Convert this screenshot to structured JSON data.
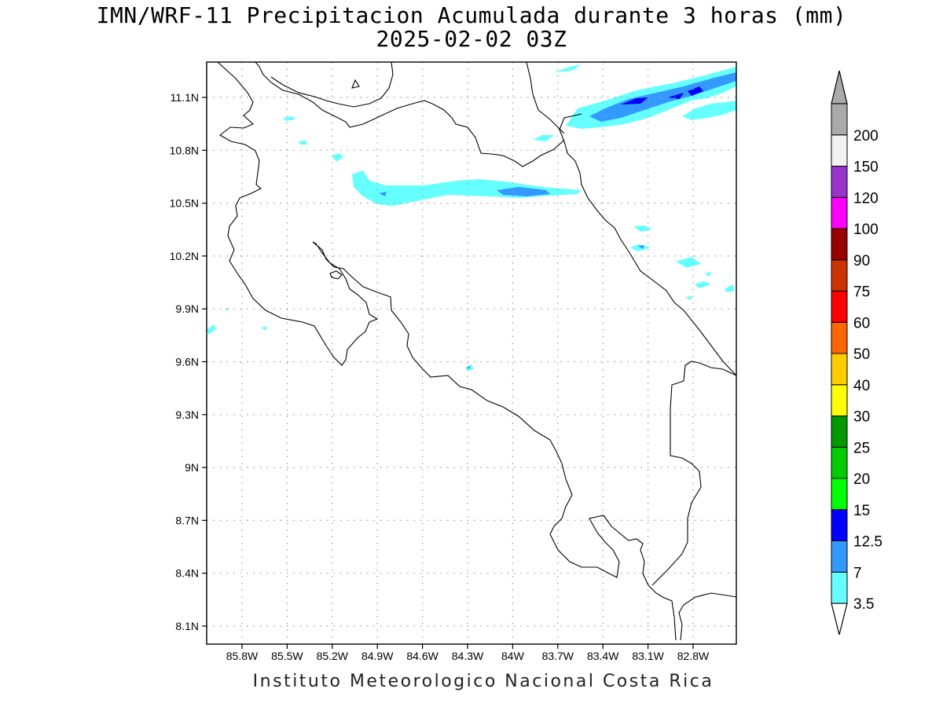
{
  "title": {
    "line1": "IMN/WRF-11 Precipitacion Acumulada durante 3 horas (mm)",
    "line2": "2025-02-02 03Z"
  },
  "footer": "Instituto Meteorologico Nacional Costa Rica",
  "lat_labels": [
    "11.1N",
    "10.8N",
    "10.5N",
    "10.2N",
    "9.9N",
    "9.6N",
    "9.3N",
    "9N",
    "8.7N",
    "8.4N",
    "8.1N"
  ],
  "lat_values": [
    11.1,
    10.8,
    10.5,
    10.2,
    9.9,
    9.6,
    9.3,
    9.0,
    8.7,
    8.4,
    8.1
  ],
  "lon_labels": [
    "85.8W",
    "85.5W",
    "85.2W",
    "84.9W",
    "84.6W",
    "84.3W",
    "84W",
    "83.7W",
    "83.4W",
    "83.1W",
    "82.8W"
  ],
  "lon_values": [
    -85.8,
    -85.5,
    -85.2,
    -84.9,
    -84.6,
    -84.3,
    -84.0,
    -83.7,
    -83.4,
    -83.1,
    -82.8
  ],
  "colorbar": {
    "levels": [
      "3.5",
      "7",
      "12.5",
      "15",
      "20",
      "25",
      "30",
      "40",
      "50",
      "60",
      "75",
      "90",
      "100",
      "120",
      "150",
      "200"
    ],
    "colors": [
      "#66ffff",
      "#3399ff",
      "#0000ff",
      "#00ff00",
      "#00cc00",
      "#009900",
      "#ffff00",
      "#ffcc00",
      "#ff6600",
      "#ff0000",
      "#cc3300",
      "#990000",
      "#ff00ff",
      "#9933cc",
      "#f2f2f2",
      "#aaaaaa"
    ],
    "under_color": "#ffffff",
    "over_color": "#aaaaaa"
  },
  "precip_colors": {
    "light": "#66ffff",
    "mid": "#3399ff",
    "heavy": "#0000ff"
  }
}
